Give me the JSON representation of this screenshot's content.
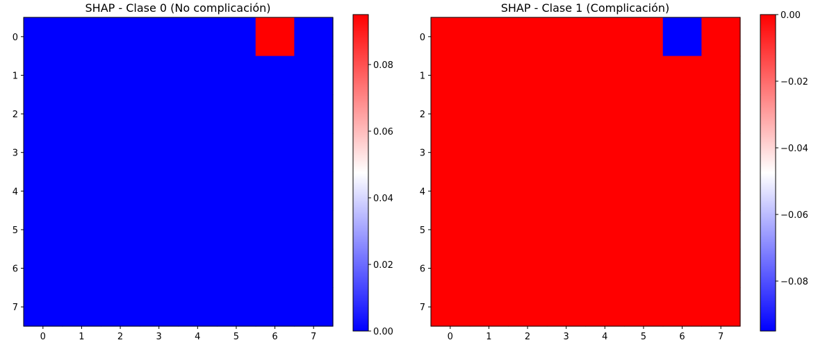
{
  "chart_data": [
    {
      "type": "heatmap",
      "title": "SHAP - Clase 0 (No complicación)",
      "xlabel": "",
      "ylabel": "",
      "x_ticks": [
        "0",
        "1",
        "2",
        "3",
        "4",
        "5",
        "6",
        "7"
      ],
      "y_ticks": [
        "0",
        "1",
        "2",
        "3",
        "4",
        "5",
        "6",
        "7"
      ],
      "values": [
        [
          0,
          0,
          0,
          0,
          0,
          0,
          0.095,
          0
        ],
        [
          0,
          0,
          0,
          0,
          0,
          0,
          0,
          0
        ],
        [
          0,
          0,
          0,
          0,
          0,
          0,
          0,
          0
        ],
        [
          0,
          0,
          0,
          0,
          0,
          0,
          0,
          0
        ],
        [
          0,
          0,
          0,
          0,
          0,
          0,
          0,
          0
        ],
        [
          0,
          0,
          0,
          0,
          0,
          0,
          0,
          0
        ],
        [
          0,
          0,
          0,
          0,
          0,
          0,
          0,
          0
        ],
        [
          0,
          0,
          0,
          0,
          0,
          0,
          0,
          0
        ]
      ],
      "colormap": "bwr",
      "vmin": 0.0,
      "vmax": 0.095,
      "colorbar_ticks": [
        0.0,
        0.02,
        0.04,
        0.06,
        0.08
      ],
      "colorbar_tick_labels": [
        "0.00",
        "0.02",
        "0.04",
        "0.06",
        "0.08"
      ]
    },
    {
      "type": "heatmap",
      "title": "SHAP - Clase 1 (Complicación)",
      "xlabel": "",
      "ylabel": "",
      "x_ticks": [
        "0",
        "1",
        "2",
        "3",
        "4",
        "5",
        "6",
        "7"
      ],
      "y_ticks": [
        "0",
        "1",
        "2",
        "3",
        "4",
        "5",
        "6",
        "7"
      ],
      "values": [
        [
          0,
          0,
          0,
          0,
          0,
          0,
          -0.095,
          0
        ],
        [
          0,
          0,
          0,
          0,
          0,
          0,
          0,
          0
        ],
        [
          0,
          0,
          0,
          0,
          0,
          0,
          0,
          0
        ],
        [
          0,
          0,
          0,
          0,
          0,
          0,
          0,
          0
        ],
        [
          0,
          0,
          0,
          0,
          0,
          0,
          0,
          0
        ],
        [
          0,
          0,
          0,
          0,
          0,
          0,
          0,
          0
        ],
        [
          0,
          0,
          0,
          0,
          0,
          0,
          0,
          0
        ],
        [
          0,
          0,
          0,
          0,
          0,
          0,
          0,
          0
        ]
      ],
      "colormap": "bwr",
      "vmin": -0.095,
      "vmax": 0.0,
      "colorbar_ticks": [
        -0.08,
        -0.06,
        -0.04,
        -0.02,
        0.0
      ],
      "colorbar_tick_labels": [
        "−0.08",
        "−0.06",
        "−0.04",
        "−0.02",
        "0.00"
      ]
    }
  ],
  "colors": {
    "low": "#0000ff",
    "mid": "#ffffff",
    "high": "#ff0000"
  }
}
